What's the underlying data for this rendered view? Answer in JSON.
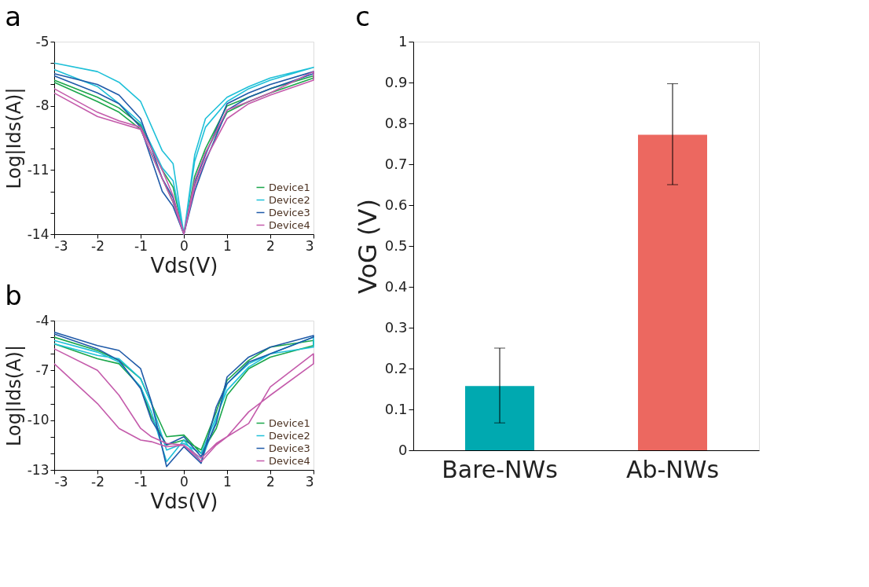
{
  "chart_data": [
    {
      "type": "line",
      "title": "a",
      "xlabel": "Vds(V)",
      "ylabel": "Log|Ids(A)|",
      "xlim": [
        -3,
        3
      ],
      "xticks": [
        -3,
        -2,
        -1,
        0,
        1,
        2,
        3
      ],
      "ylim": [
        -14,
        -5
      ],
      "yticks": [
        -14,
        {
          "value": -13,
          "label": null
        },
        {
          "value": -12,
          "label": null
        },
        -11,
        {
          "value": -10,
          "label": null
        },
        {
          "value": -9,
          "label": null
        },
        -8,
        {
          "value": -7,
          "label": null
        },
        {
          "value": -6,
          "label": null
        },
        -5
      ],
      "grid": false,
      "legend": "bottom right",
      "marker": "none",
      "line_style": "solid",
      "x": [
        -3,
        -2,
        -1.5,
        -1,
        -0.5,
        -0.25,
        0,
        0.25,
        0.5,
        1,
        1.5,
        2,
        3,
        3,
        2,
        1.5,
        1,
        0.5,
        0.25,
        0,
        -0.25,
        -0.5,
        -1,
        -1.5,
        -2,
        -3
      ],
      "series": [
        {
          "name": "Device1",
          "color": "#1aa64a",
          "values": [
            -6.8,
            -7.6,
            -8.1,
            -8.9,
            -11.0,
            -11.8,
            -14,
            -11.3,
            -10.0,
            -8.0,
            -7.6,
            -7.2,
            -6.6,
            -6.7,
            -7.4,
            -7.8,
            -8.3,
            -10.2,
            -11.6,
            -14,
            -12.5,
            -11.4,
            -9.1,
            -8.3,
            -7.8,
            -6.9
          ]
        },
        {
          "name": "Device2",
          "color": "#1ec0d8",
          "values": [
            -6.0,
            -6.4,
            -6.9,
            -7.8,
            -10.1,
            -10.7,
            -14,
            -10.3,
            -8.6,
            -7.6,
            -7.1,
            -6.7,
            -6.2,
            -6.2,
            -6.8,
            -7.2,
            -7.8,
            -9.0,
            -10.6,
            -14,
            -11.5,
            -10.9,
            -8.8,
            -7.9,
            -7.1,
            -6.3
          ]
        },
        {
          "name": "Device3",
          "color": "#1f5aa8",
          "values": [
            -6.5,
            -7.0,
            -7.5,
            -8.6,
            -11.4,
            -12.3,
            -14,
            -11.6,
            -10.3,
            -7.9,
            -7.4,
            -7.0,
            -6.4,
            -6.5,
            -7.2,
            -7.6,
            -8.2,
            -10.6,
            -12.0,
            -14,
            -12.7,
            -12.0,
            -9.0,
            -7.9,
            -7.4,
            -6.6
          ]
        },
        {
          "name": "Device4",
          "color": "#c45bab",
          "values": [
            -7.2,
            -8.3,
            -8.7,
            -9.0,
            -11.0,
            -12.2,
            -14,
            -11.5,
            -10.2,
            -8.2,
            -7.8,
            -7.4,
            -6.4,
            -6.8,
            -7.5,
            -7.9,
            -8.6,
            -10.5,
            -11.8,
            -14,
            -12.5,
            -11.4,
            -9.1,
            -8.8,
            -8.5,
            -7.4
          ]
        }
      ]
    },
    {
      "type": "line",
      "title": "b",
      "xlabel": "Vds(V)",
      "ylabel": "Log|Ids(A)|",
      "xlim": [
        -3,
        3
      ],
      "xticks": [
        -3,
        -2,
        -1,
        0,
        1,
        2,
        3
      ],
      "ylim": [
        -13,
        -4
      ],
      "yticks": [
        -13,
        {
          "value": -12,
          "label": null
        },
        {
          "value": -11,
          "label": null
        },
        -10,
        {
          "value": -9,
          "label": null
        },
        {
          "value": -8,
          "label": null
        },
        -7,
        {
          "value": -6,
          "label": null
        },
        {
          "value": -5,
          "label": null
        },
        -4
      ],
      "grid": false,
      "legend": "bottom right",
      "marker": "none",
      "line_style": "solid",
      "x": [
        -3,
        -2,
        -1.5,
        -1,
        -0.75,
        -0.4,
        0,
        0.4,
        0.75,
        1,
        1.5,
        2,
        3,
        3,
        2,
        1.5,
        1,
        0.75,
        0.4,
        0,
        -0.4,
        -0.75,
        -1,
        -1.5,
        -2,
        -3
      ],
      "series": [
        {
          "name": "Device1",
          "color": "#1aa64a",
          "values": [
            -5.0,
            -5.8,
            -6.4,
            -7.5,
            -9.0,
            -11.0,
            -10.9,
            -12.0,
            -10.5,
            -8.5,
            -6.9,
            -6.2,
            -5.5,
            -5.2,
            -5.6,
            -6.4,
            -7.6,
            -9.5,
            -11.8,
            -11.2,
            -11.5,
            -9.8,
            -8.0,
            -6.6,
            -6.3,
            -5.4
          ]
        },
        {
          "name": "Device2",
          "color": "#1ec0d8",
          "values": [
            -5.2,
            -5.9,
            -6.5,
            -8.0,
            -9.5,
            -12.5,
            -11.2,
            -12.5,
            -10.0,
            -7.8,
            -6.6,
            -6.0,
            -5.6,
            -5.0,
            -6.0,
            -6.8,
            -8.2,
            -9.8,
            -12.0,
            -11.4,
            -11.8,
            -9.0,
            -7.5,
            -6.3,
            -6.1,
            -5.4
          ]
        },
        {
          "name": "Device3",
          "color": "#1f5aa8",
          "values": [
            -4.7,
            -5.5,
            -5.8,
            -6.9,
            -8.9,
            -12.8,
            -11.6,
            -12.6,
            -9.2,
            -7.8,
            -6.5,
            -6.0,
            -5.0,
            -4.9,
            -5.6,
            -6.2,
            -7.4,
            -10.2,
            -12.2,
            -11.0,
            -11.5,
            -10.0,
            -8.1,
            -6.4,
            -5.7,
            -4.8
          ]
        },
        {
          "name": "Device4",
          "color": "#c45bab",
          "values": [
            -5.7,
            -7.0,
            -8.5,
            -10.5,
            -11.0,
            -11.4,
            -11.5,
            -12.5,
            -11.5,
            -11.0,
            -9.5,
            -8.5,
            -6.6,
            -6.0,
            -8.0,
            -10.2,
            -11.0,
            -11.4,
            -12.3,
            -11.5,
            -11.6,
            -11.3,
            -11.2,
            -10.5,
            -9.0,
            -6.6
          ]
        }
      ]
    },
    {
      "type": "bar",
      "title": "c",
      "ylabel": "VoG (V)",
      "categories": [
        "Bare-NWs",
        "Ab-NWs"
      ],
      "values": [
        0.157,
        0.772
      ],
      "colors": [
        "#00a9b0",
        "#ec6860"
      ],
      "errors": [
        [
          0.067,
          0.25
        ],
        [
          0.65,
          0.897
        ]
      ],
      "ylim": [
        0,
        1
      ],
      "yticks": [
        0,
        0.1,
        0.2,
        0.3,
        0.4,
        0.5,
        0.6,
        0.7,
        0.8,
        0.9,
        1
      ],
      "grid": false
    }
  ]
}
